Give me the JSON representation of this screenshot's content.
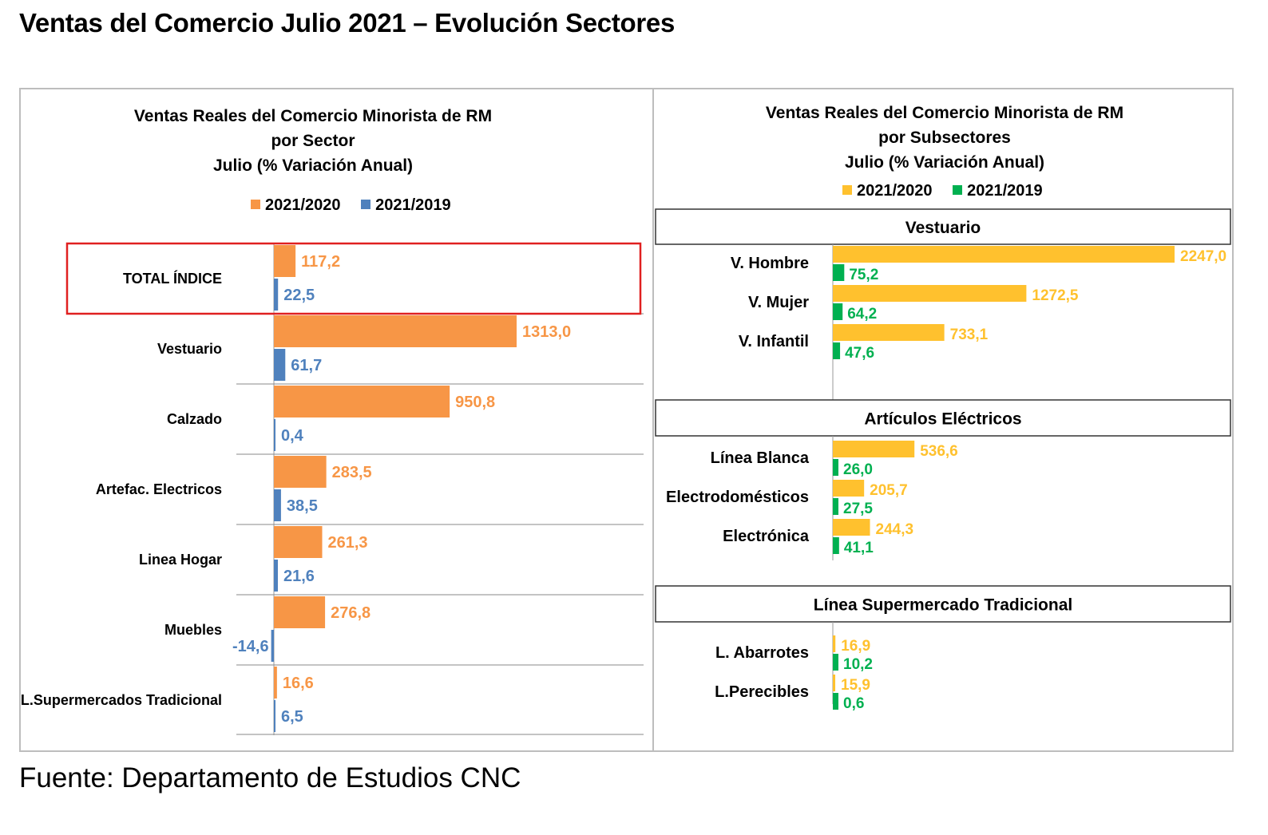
{
  "page": {
    "title": "Ventas del Comercio Julio 2021 – Evolución Sectores",
    "source": "Fuente: Departamento de Estudios CNC"
  },
  "colors": {
    "orange": "#F79646",
    "blue": "#4F81BD",
    "yellow": "#FFC12E",
    "green": "#00B050",
    "highlight": "#E02020"
  },
  "chart_data": [
    {
      "type": "bar",
      "orientation": "horizontal",
      "title_lines": [
        "Ventas Reales del Comercio Minorista de RM",
        "por Sector",
        "Julio  (% Variación Anual)"
      ],
      "categories": [
        "TOTAL ÍNDICE",
        "Vestuario",
        "Calzado",
        "Artefac. Electricos",
        "Linea Hogar",
        "Muebles",
        "L.Supermercados Tradicional"
      ],
      "series": [
        {
          "name": "2021/2020",
          "color": "#F79646",
          "values": [
            117.2,
            1313.0,
            950.8,
            283.5,
            261.3,
            276.8,
            16.6
          ],
          "labels": [
            "117,2",
            "1313,0",
            "950,8",
            "283,5",
            "261,3",
            "276,8",
            "16,6"
          ]
        },
        {
          "name": "2021/2019",
          "color": "#4F81BD",
          "values": [
            22.5,
            61.7,
            0.4,
            38.5,
            21.6,
            -14.6,
            6.5
          ],
          "labels": [
            "22,5",
            "61,7",
            "0,4",
            "38,5",
            "21,6",
            "-14,6",
            "6,5"
          ]
        }
      ],
      "highlighted_category": "TOTAL ÍNDICE",
      "grid": false,
      "legend_position": "top"
    },
    {
      "type": "bar",
      "orientation": "horizontal",
      "title_lines": [
        "Ventas Reales del Comercio Minorista de RM",
        "por Subsectores",
        "Julio (% Variación Anual)"
      ],
      "series_names": [
        "2021/2020",
        "2021/2019"
      ],
      "series_colors": [
        "#FFC12E",
        "#00B050"
      ],
      "groups": [
        {
          "name": "Vestuario",
          "categories": [
            "V. Hombre",
            "V. Mujer",
            "V. Infantil"
          ],
          "values_2021_2020": [
            2247.0,
            1272.5,
            733.1
          ],
          "labels_2021_2020": [
            "2247,0",
            "1272,5",
            "733,1"
          ],
          "values_2021_2019": [
            75.2,
            64.2,
            47.6
          ],
          "labels_2021_2019": [
            "75,2",
            "64,2",
            "47,6"
          ]
        },
        {
          "name": "Artículos Eléctricos",
          "categories": [
            "Línea Blanca",
            "Electrodomésticos",
            "Electrónica"
          ],
          "values_2021_2020": [
            536.6,
            205.7,
            244.3
          ],
          "labels_2021_2020": [
            "536,6",
            "205,7",
            "244,3"
          ],
          "values_2021_2019": [
            26.0,
            27.5,
            41.1
          ],
          "labels_2021_2019": [
            "26,0",
            "27,5",
            "41,1"
          ]
        },
        {
          "name": "Línea Supermercado Tradicional",
          "categories": [
            "L. Abarrotes",
            "L.Perecibles"
          ],
          "values_2021_2020": [
            16.9,
            15.9
          ],
          "labels_2021_2020": [
            "16,9",
            "15,9"
          ],
          "values_2021_2019": [
            10.2,
            0.6
          ],
          "labels_2021_2019": [
            "10,2",
            "0,6"
          ]
        }
      ],
      "grid": false,
      "legend_position": "top"
    }
  ]
}
